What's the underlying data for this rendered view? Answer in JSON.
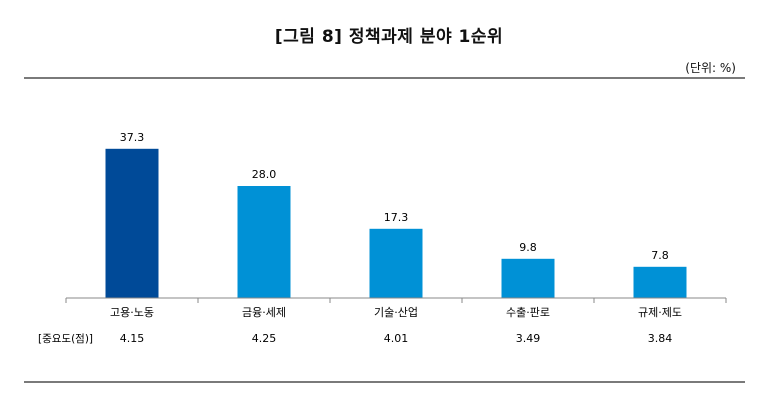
{
  "title": "[그림 8] 정책과제 분야 1순위",
  "unit": "(단위: %)",
  "chart_data": {
    "type": "bar",
    "categories": [
      "고용·노동",
      "금융·세제",
      "기술·산업",
      "수출·판로",
      "규제·제도"
    ],
    "values": [
      37.3,
      28.0,
      17.3,
      9.8,
      7.8
    ],
    "value_labels": [
      "37.3",
      "28.0",
      "17.3",
      "9.8",
      "7.8"
    ],
    "ylim": [
      0,
      40
    ],
    "grid": false,
    "highlight_color": "#004a98",
    "bar_color": "#0091d6",
    "importance": {
      "label": "[중요도(점)]",
      "values": [
        "4.15",
        "4.25",
        "4.01",
        "3.49",
        "3.84"
      ]
    }
  }
}
